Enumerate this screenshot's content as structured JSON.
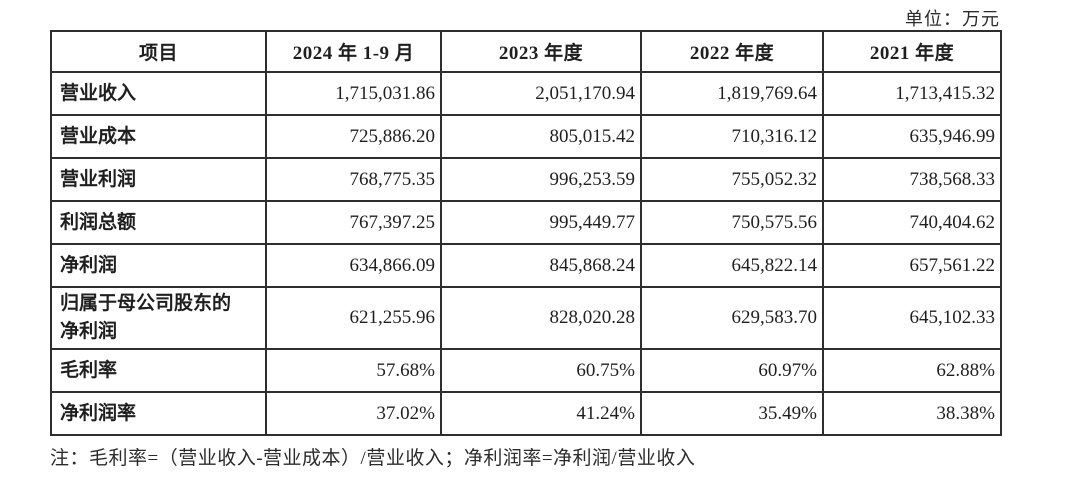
{
  "unit_label": "单位：万元",
  "table": {
    "columns": [
      "项目",
      "2024 年 1-9 月",
      "2023 年度",
      "2022 年度",
      "2021 年度"
    ],
    "rows": [
      {
        "label": "营业收入",
        "values": [
          "1,715,031.86",
          "2,051,170.94",
          "1,819,769.64",
          "1,713,415.32"
        ]
      },
      {
        "label": "营业成本",
        "values": [
          "725,886.20",
          "805,015.42",
          "710,316.12",
          "635,946.99"
        ]
      },
      {
        "label": "营业利润",
        "values": [
          "768,775.35",
          "996,253.59",
          "755,052.32",
          "738,568.33"
        ]
      },
      {
        "label": "利润总额",
        "values": [
          "767,397.25",
          "995,449.77",
          "750,575.56",
          "740,404.62"
        ]
      },
      {
        "label": "净利润",
        "values": [
          "634,866.09",
          "845,868.24",
          "645,822.14",
          "657,561.22"
        ]
      },
      {
        "label": "归属于母公司股东的\n净利润",
        "values": [
          "621,255.96",
          "828,020.28",
          "629,583.70",
          "645,102.33"
        ]
      },
      {
        "label": "毛利率",
        "values": [
          "57.68%",
          "60.75%",
          "60.97%",
          "62.88%"
        ]
      },
      {
        "label": "净利润率",
        "values": [
          "37.02%",
          "41.24%",
          "35.49%",
          "38.38%"
        ]
      }
    ]
  },
  "footnote": "注：毛利率=（营业收入-营业成本）/营业收入；净利润率=净利润/营业收入"
}
